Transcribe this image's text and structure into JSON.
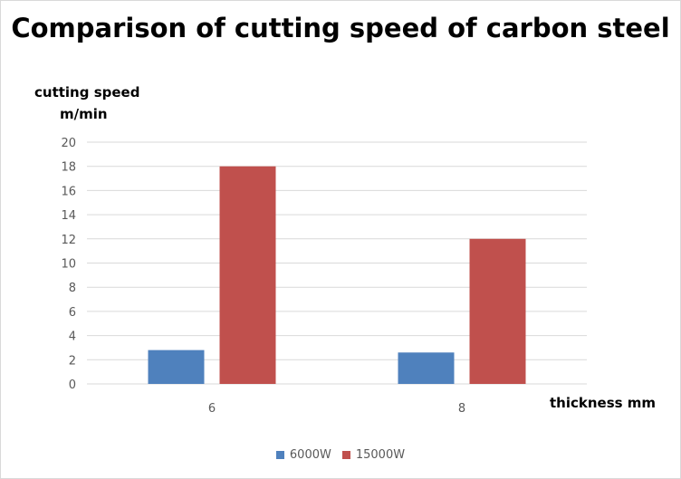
{
  "chart_data": {
    "type": "bar",
    "title": "Comparison of cutting speed of carbon steel",
    "ylabel_line1": "cutting speed",
    "ylabel_line2": "m/min",
    "xlabel": "thickness mm",
    "categories": [
      "6",
      "8"
    ],
    "series": [
      {
        "name": "6000W",
        "values": [
          2.8,
          2.6
        ],
        "color": "#4f81bd"
      },
      {
        "name": "15000W",
        "values": [
          18,
          12
        ],
        "color": "#c0504d"
      }
    ],
    "ylim": [
      0,
      20
    ],
    "yticks": [
      "0",
      "2",
      "4",
      "6",
      "8",
      "10",
      "12",
      "14",
      "16",
      "18",
      "20"
    ],
    "grid": true,
    "legend": "bottom"
  }
}
